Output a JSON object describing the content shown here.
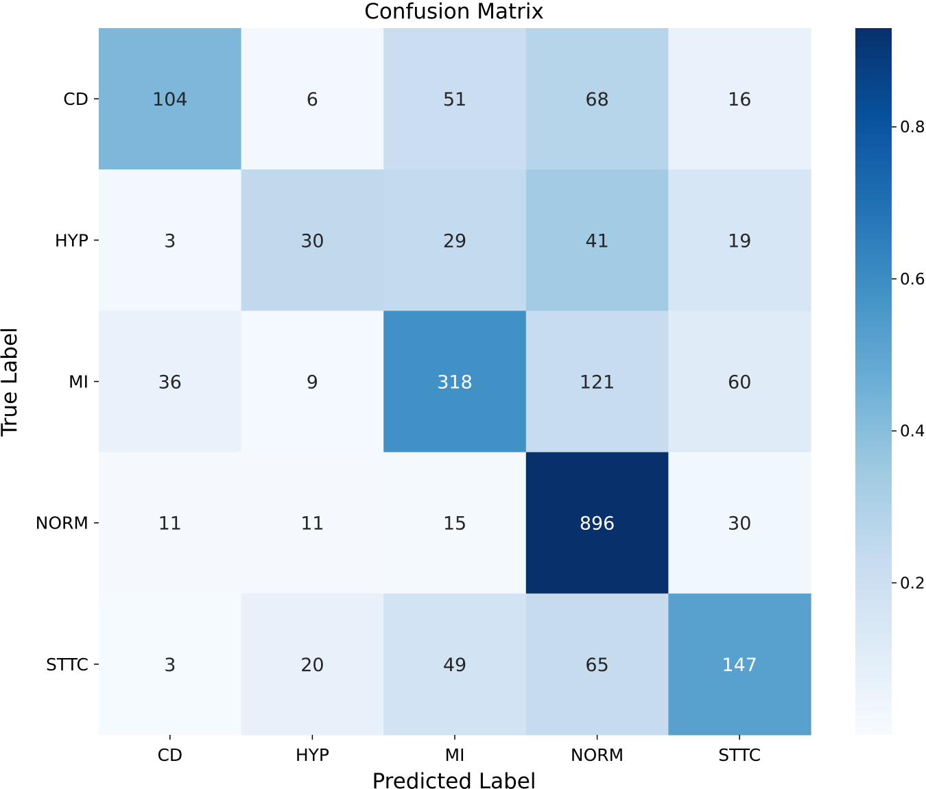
{
  "chart_data": {
    "type": "heatmap",
    "title": "Confusion Matrix",
    "xlabel": "Predicted Label",
    "ylabel": "True Label",
    "x_categories": [
      "CD",
      "HYP",
      "MI",
      "NORM",
      "STTC"
    ],
    "y_categories": [
      "CD",
      "HYP",
      "MI",
      "NORM",
      "STTC"
    ],
    "values": [
      [
        104,
        6,
        51,
        68,
        16
      ],
      [
        3,
        30,
        29,
        41,
        19
      ],
      [
        36,
        9,
        318,
        121,
        60
      ],
      [
        11,
        11,
        15,
        896,
        30
      ],
      [
        3,
        20,
        49,
        65,
        147
      ]
    ],
    "normalization": "row",
    "colormap": "Blues",
    "colorbar": {
      "range": [
        0,
        0.93
      ],
      "ticks": [
        0.2,
        0.4,
        0.6,
        0.8
      ],
      "tick_labels": [
        "0.2",
        "0.4",
        "0.6",
        "0.8"
      ]
    },
    "colors": {
      "text_dark": "#262626",
      "text_light": "#ffffff"
    }
  }
}
